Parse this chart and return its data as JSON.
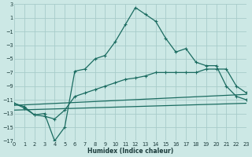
{
  "xlabel": "Humidex (Indice chaleur)",
  "bg_color": "#cce8e5",
  "grid_color": "#a8ccca",
  "line_color": "#1a6b60",
  "xlim": [
    0,
    23
  ],
  "ylim": [
    -17,
    3
  ],
  "yticks": [
    3,
    1,
    -1,
    -3,
    -5,
    -7,
    -9,
    -11,
    -13,
    -15,
    -17
  ],
  "xticks": [
    0,
    1,
    2,
    3,
    4,
    5,
    6,
    7,
    8,
    9,
    10,
    11,
    12,
    13,
    14,
    15,
    16,
    17,
    18,
    19,
    20,
    21,
    22,
    23
  ],
  "series1_x": [
    0,
    1,
    2,
    3,
    4,
    5,
    6,
    7,
    8,
    9,
    10,
    11,
    12,
    13,
    14,
    15,
    16,
    17,
    18,
    19,
    20,
    21,
    22,
    23
  ],
  "series1_y": [
    -11.5,
    -12.0,
    -13.2,
    -13.0,
    -17.0,
    -15.0,
    -6.8,
    -6.5,
    -5.0,
    -4.5,
    -2.5,
    0.0,
    2.5,
    1.5,
    0.5,
    -2.0,
    -4.0,
    -3.5,
    -5.5,
    -6.0,
    -6.0,
    -9.0,
    -10.5,
    -11.0
  ],
  "series2_x": [
    0,
    1,
    2,
    3,
    4,
    5,
    6,
    7,
    8,
    9,
    10,
    11,
    12,
    13,
    14,
    15,
    16,
    17,
    18,
    19,
    20,
    21,
    22,
    23
  ],
  "series2_y": [
    -11.5,
    -12.2,
    -13.2,
    -13.4,
    -13.8,
    -12.5,
    -10.5,
    -10.0,
    -9.5,
    -9.0,
    -8.5,
    -8.0,
    -7.8,
    -7.5,
    -7.0,
    -7.0,
    -7.0,
    -7.0,
    -7.0,
    -6.5,
    -6.5,
    -6.5,
    -9.0,
    -10.0
  ],
  "line3_x": [
    0,
    23
  ],
  "line3_y": [
    -11.8,
    -10.2
  ],
  "line4_x": [
    0,
    23
  ],
  "line4_y": [
    -12.5,
    -11.5
  ]
}
